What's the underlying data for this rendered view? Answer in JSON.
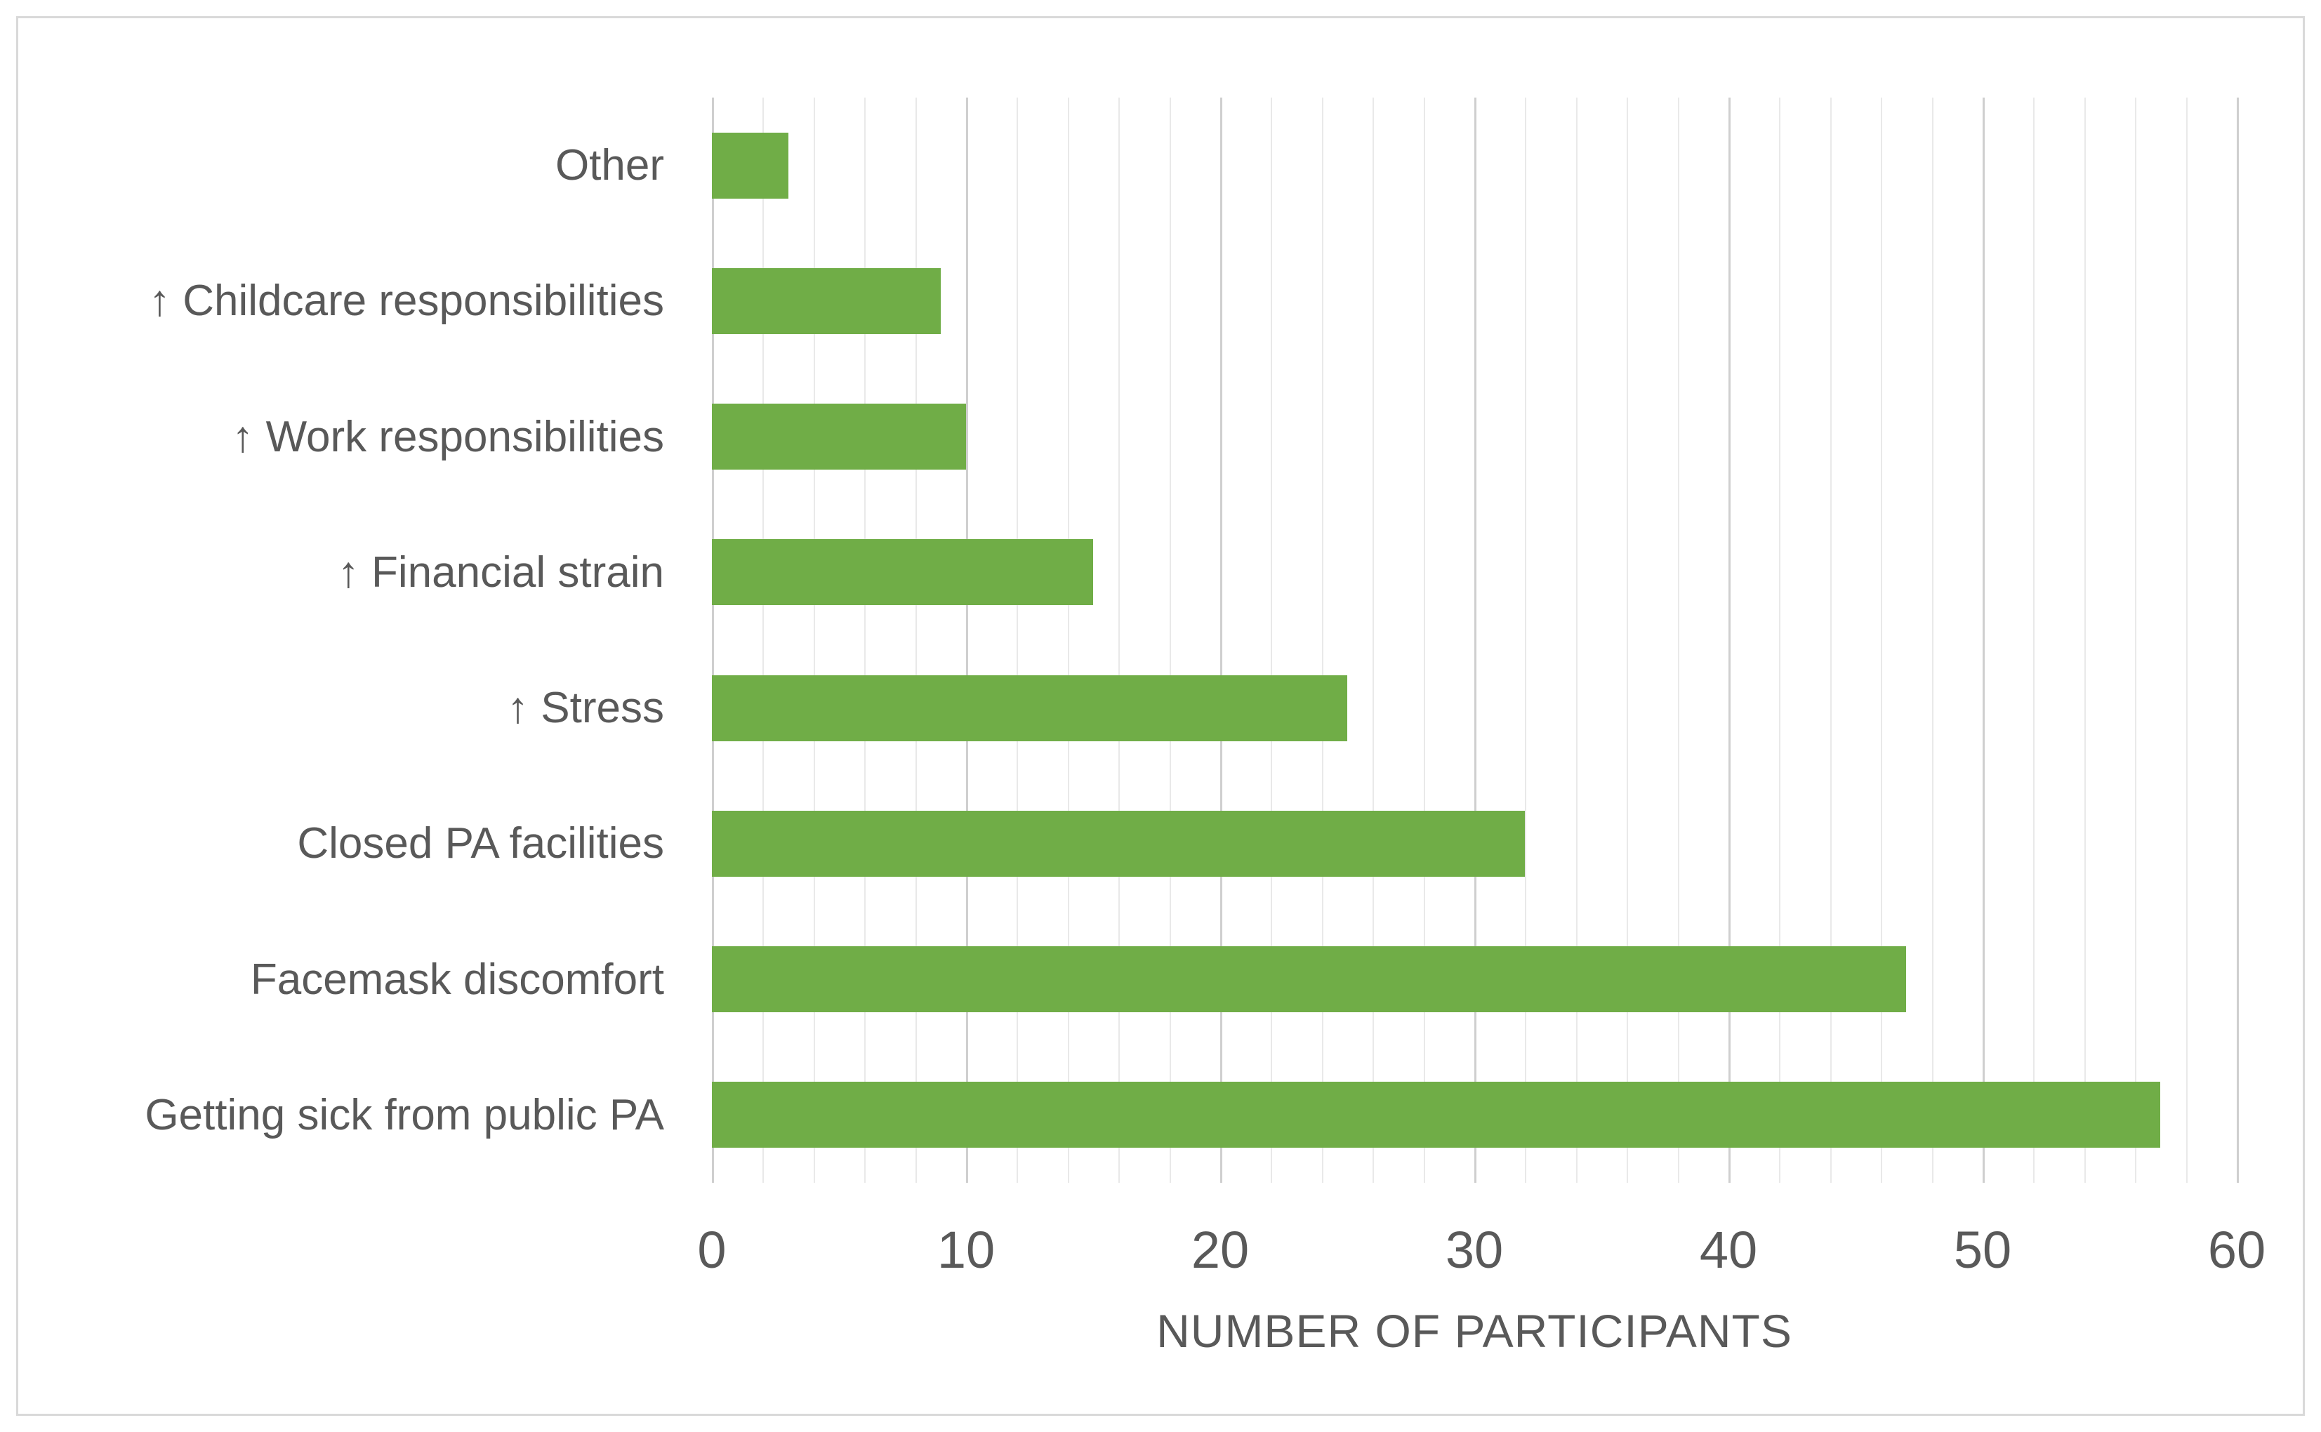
{
  "figure": {
    "background": "#FFFFFF",
    "border_color": "#D9D9D9"
  },
  "chart_data": {
    "type": "bar",
    "orientation": "horizontal",
    "title": "",
    "categories": [
      "Other",
      "↑ Childcare responsibilities",
      "↑ Work responsibilities",
      "↑ Financial strain",
      "↑ Stress",
      "Closed PA facilities",
      "Facemask discomfort",
      "Getting sick from public PA"
    ],
    "values": [
      3,
      9,
      10,
      15,
      25,
      32,
      47,
      57
    ],
    "xlabel": "NUMBER OF PARTICIPANTS",
    "ylabel": "",
    "xlim": [
      0,
      60
    ],
    "x_major_tick_step": 10,
    "x_minor_tick_step": 2,
    "x_tick_labels": [
      "0",
      "10",
      "20",
      "30",
      "40",
      "50",
      "60"
    ],
    "grid": "vertical",
    "legend": "none",
    "colors": {
      "bar": "#70AD47",
      "grid_minor": "#E9E9E9",
      "grid_major": "#CFCFCF",
      "axis_text": "#595959"
    }
  }
}
